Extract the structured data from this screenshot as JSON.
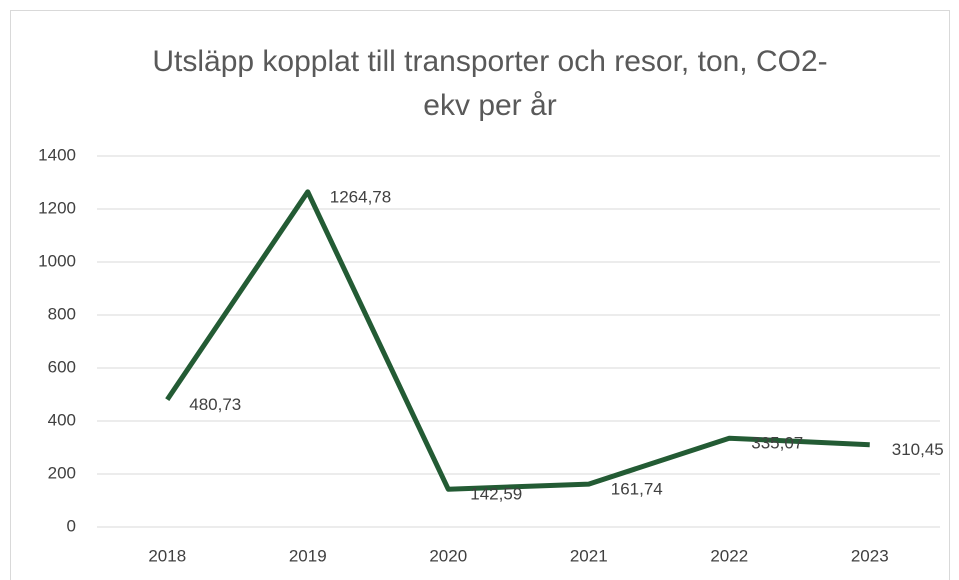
{
  "chart_data": {
    "type": "line",
    "title": "Utsläpp kopplat till transporter och resor, ton, CO2-ekv per år",
    "categories": [
      "2018",
      "2019",
      "2020",
      "2021",
      "2022",
      "2023"
    ],
    "series": [
      {
        "color": "#235b34",
        "values": [
          480.73,
          1264.78,
          142.59,
          161.74,
          335.07,
          310.45
        ],
        "value_labels": [
          "480,73",
          "1264,78",
          "142,59",
          "161,74",
          "335,07",
          "310,45"
        ]
      }
    ],
    "ylim": [
      0,
      1400
    ],
    "yticks": [
      0,
      200,
      400,
      600,
      800,
      1000,
      1200,
      1400
    ],
    "grid": true
  }
}
